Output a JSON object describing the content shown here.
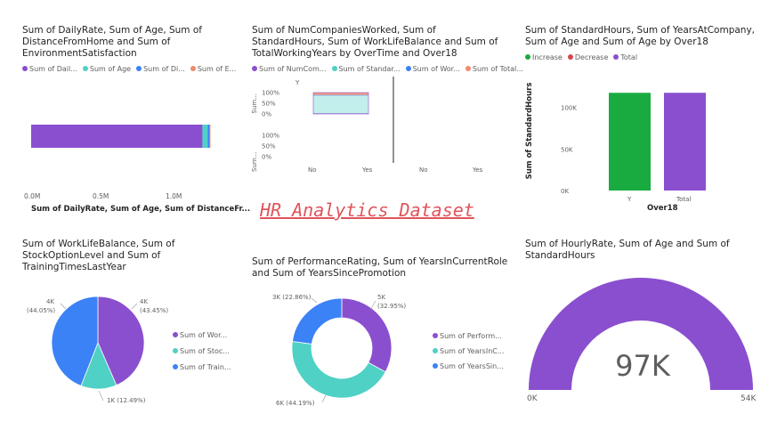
{
  "page": {
    "title": "HR Analytics Dataset"
  },
  "visual1": {
    "title": "Sum of DailyRate, Sum of Age, Sum of DistanceFromHome and Sum of EnvironmentSatisfaction",
    "legend": [
      {
        "label": "Sum of Dail...",
        "color": "#8a4fcf"
      },
      {
        "label": "Sum of Age",
        "color": "#4fd1c5"
      },
      {
        "label": "Sum of Di...",
        "color": "#3b82f6"
      },
      {
        "label": "Sum of E...",
        "color": "#f08a6c"
      }
    ],
    "x_ticks": [
      "0.0M",
      "0.5M",
      "1.0M"
    ],
    "x_label": "Sum of DailyRate, Sum of Age, Sum of DistanceFr..."
  },
  "visual2": {
    "title": "Sum of NumCompaniesWorked, Sum of StandardHours, Sum of WorkLifeBalance and Sum of TotalWorkingYears by OverTime and Over18",
    "legend": [
      {
        "label": "Sum of NumCom...",
        "color": "#8a4fcf"
      },
      {
        "label": "Sum of Standar...",
        "color": "#4fd1c5"
      },
      {
        "label": "Sum of Wor...",
        "color": "#3b82f6"
      },
      {
        "label": "Sum of Total...",
        "color": "#f08a6c"
      }
    ],
    "y_header": "Y",
    "row_label": "Sum...",
    "y_ticks": [
      "100%",
      "50%",
      "0%"
    ],
    "x_ticks": [
      "No",
      "Yes",
      "No",
      "Yes"
    ]
  },
  "visual3": {
    "title": "Sum of StandardHours, Sum of YearsAtCompany, Sum of Age and Sum of Age by Over18",
    "legend": [
      {
        "label": "Increase",
        "color": "#1aab40"
      },
      {
        "label": "Decrease",
        "color": "#d64550"
      },
      {
        "label": "Total",
        "color": "#8a4fcf"
      }
    ],
    "y_ticks": [
      "100K",
      "50K",
      "0K"
    ],
    "y_label": "Sum of StandardHours",
    "x_ticks": [
      "Y",
      "Total"
    ],
    "x_label": "Over18"
  },
  "visual4": {
    "title": "Sum of WorkLifeBalance, Sum of StockOptionLevel and Sum of TrainingTimesLastYear",
    "labels": {
      "a_val": "4K",
      "a_pct": "(43.45%)",
      "b_val": "1K (12.49%)",
      "c_val": "4K",
      "c_pct": "(44.05%)"
    },
    "legend": [
      {
        "label": "Sum of Wor...",
        "color": "#8a4fcf"
      },
      {
        "label": "Sum of Stoc...",
        "color": "#4fd1c5"
      },
      {
        "label": "Sum of Train...",
        "color": "#3b82f6"
      }
    ]
  },
  "visual5": {
    "title": "Sum of PerformanceRating, Sum of YearsInCurrentRole and Sum of YearsSincePromotion",
    "labels": {
      "a_val": "5K",
      "a_pct": "(32.95%)",
      "b_val": "6K (44.19%)",
      "c_val": "3K (22.86%)"
    },
    "legend": [
      {
        "label": "Sum of Perform...",
        "color": "#8a4fcf"
      },
      {
        "label": "Sum of YearsInC...",
        "color": "#4fd1c5"
      },
      {
        "label": "Sum of YearsSin...",
        "color": "#3b82f6"
      }
    ]
  },
  "visual6": {
    "title": "Sum of HourlyRate, Sum of Age and Sum of StandardHours",
    "value": "97K",
    "min": "0K",
    "max": "54K",
    "color": "#8a4fcf"
  },
  "chart_data": [
    {
      "type": "bar",
      "orientation": "horizontal",
      "series": [
        {
          "name": "Sum of DailyRate",
          "values": [
            1180000
          ]
        },
        {
          "name": "Sum of Age",
          "values": [
            36000
          ]
        },
        {
          "name": "Sum of DistanceFromHome",
          "values": [
            13000
          ]
        },
        {
          "name": "Sum of EnvironmentSatisfaction",
          "values": [
            4000
          ]
        }
      ],
      "xlim": [
        0,
        1300000
      ]
    },
    {
      "type": "bar",
      "stacked": "100%",
      "categories": [
        "No",
        "Yes"
      ],
      "series": [
        {
          "name": "Sum of NumCompaniesWorked",
          "values": [
            0.03,
            0.03
          ]
        },
        {
          "name": "Sum of StandardHours",
          "values": [
            0.83,
            0.83
          ]
        },
        {
          "name": "Sum of WorkLifeBalance",
          "values": [
            0.03,
            0.03
          ]
        },
        {
          "name": "Sum of TotalWorkingYears",
          "values": [
            0.11,
            0.11
          ]
        }
      ]
    },
    {
      "type": "bar",
      "categories": [
        "Y",
        "Total"
      ],
      "values": [
        117600,
        117600
      ],
      "ylim": [
        0,
        120000
      ]
    },
    {
      "type": "pie",
      "categories": [
        "Sum of WorkLifeBalance",
        "Sum of StockOptionLevel",
        "Sum of TrainingTimesLastYear"
      ],
      "values": [
        43.45,
        12.49,
        44.05
      ]
    },
    {
      "type": "pie",
      "donut": true,
      "categories": [
        "Sum of PerformanceRating",
        "Sum of YearsInCurrentRole",
        "Sum of YearsSincePromotion"
      ],
      "values": [
        32.95,
        44.19,
        22.86
      ]
    },
    {
      "type": "gauge",
      "value": 97,
      "min": 0,
      "max": 54
    }
  ]
}
